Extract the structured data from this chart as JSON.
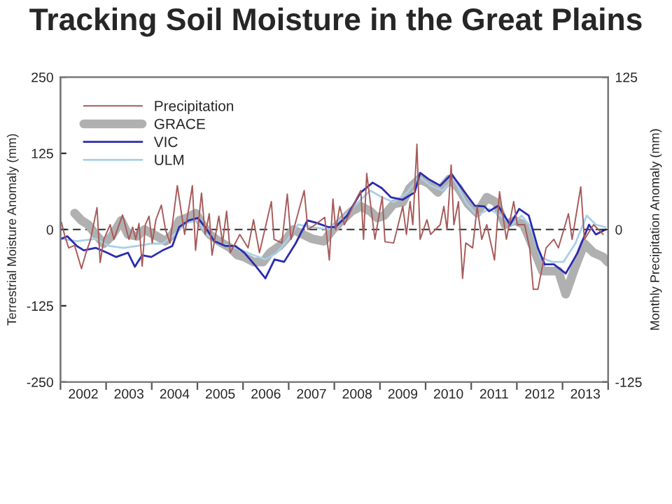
{
  "chart_data": {
    "type": "line",
    "title": "Tracking Soil Moisture in the Great Plains",
    "ylabel": "Terrestrial Moisture Anomaly (mm)",
    "y2label": "Monthly Precipitation Anomaly (mm)",
    "xlim": [
      2002,
      2014
    ],
    "xticks": [
      {
        "value": 2002,
        "label": null
      },
      {
        "value": 2002.5,
        "label": "2002"
      },
      {
        "value": 2003,
        "label": null
      },
      {
        "value": 2003.5,
        "label": "2003"
      },
      {
        "value": 2004,
        "label": null
      },
      {
        "value": 2004.5,
        "label": "2004"
      },
      {
        "value": 2005,
        "label": null
      },
      {
        "value": 2005.5,
        "label": "2005"
      },
      {
        "value": 2006,
        "label": null
      },
      {
        "value": 2006.5,
        "label": "2006"
      },
      {
        "value": 2007,
        "label": null
      },
      {
        "value": 2007.5,
        "label": "2007"
      },
      {
        "value": 2008,
        "label": null
      },
      {
        "value": 2008.5,
        "label": "2008"
      },
      {
        "value": 2009,
        "label": null
      },
      {
        "value": 2009.5,
        "label": "2009"
      },
      {
        "value": 2010,
        "label": null
      },
      {
        "value": 2010.5,
        "label": "2010"
      },
      {
        "value": 2011,
        "label": null
      },
      {
        "value": 2011.5,
        "label": "2011"
      },
      {
        "value": 2012,
        "label": null
      },
      {
        "value": 2012.5,
        "label": "2012"
      },
      {
        "value": 2013,
        "label": null
      },
      {
        "value": 2013.5,
        "label": "2013"
      },
      {
        "value": 2014,
        "label": null
      }
    ],
    "ylim": [
      -250,
      250
    ],
    "yticks": [
      -250,
      -125,
      0,
      125,
      250
    ],
    "y2lim": [
      -125,
      125
    ],
    "y2ticks": [
      -125,
      0,
      125
    ],
    "grid": false,
    "legend": "top left",
    "ref_lines": [
      {
        "axis": "y",
        "value": 0,
        "label": null,
        "color": "#444444",
        "line_style": "dashed"
      }
    ],
    "series": [
      {
        "name": "Precipitation",
        "color": "#a85a5a",
        "axis": "y2",
        "x": [
          2002.02,
          2002.1,
          2002.18,
          2002.31,
          2002.46,
          2002.56,
          2002.66,
          2002.8,
          2002.87,
          2002.95,
          2003.09,
          2003.17,
          2003.36,
          2003.5,
          2003.58,
          2003.65,
          2003.72,
          2003.79,
          2003.86,
          2003.94,
          2004.01,
          2004.09,
          2004.21,
          2004.3,
          2004.4,
          2004.56,
          2004.72,
          2004.89,
          2004.96,
          2005.09,
          2005.17,
          2005.26,
          2005.32,
          2005.47,
          2005.55,
          2005.64,
          2005.72,
          2005.93,
          2006.11,
          2006.23,
          2006.36,
          2006.62,
          2006.68,
          2006.85,
          2006.97,
          2007.05,
          2007.34,
          2007.42,
          2007.58,
          2007.79,
          2007.89,
          2007.97,
          2008.03,
          2008.12,
          2008.22,
          2008.48,
          2008.58,
          2008.64,
          2008.71,
          2008.89,
          2009.05,
          2009.11,
          2009.3,
          2009.5,
          2009.58,
          2009.66,
          2009.72,
          2009.81,
          2009.88,
          2010.03,
          2010.11,
          2010.32,
          2010.4,
          2010.47,
          2010.56,
          2010.62,
          2010.72,
          2010.81,
          2010.88,
          2011.03,
          2011.13,
          2011.23,
          2011.34,
          2011.51,
          2011.62,
          2011.77,
          2011.93,
          2012.01,
          2012.17,
          2012.28,
          2012.36,
          2012.46,
          2012.64,
          2012.81,
          2012.91,
          2013.13,
          2013.21,
          2013.4,
          2013.48,
          2013.68,
          2013.89
        ],
        "values": [
          6,
          -6,
          -15,
          -13,
          -32,
          -19,
          -8,
          18,
          -27,
          -8,
          4,
          -8,
          12,
          -8,
          2,
          -8,
          5,
          -30,
          4,
          11,
          -11,
          8,
          20,
          0,
          -11,
          36,
          -4,
          36,
          -17,
          30,
          -4,
          13,
          -21,
          11,
          -11,
          15,
          -19,
          -4,
          -15,
          8,
          -19,
          23,
          -8,
          -11,
          29,
          -8,
          32,
          0,
          4,
          10,
          -25,
          25,
          0,
          19,
          4,
          25,
          32,
          -8,
          46,
          -8,
          27,
          -10,
          -11,
          19,
          -4,
          23,
          4,
          70,
          -8,
          8,
          -4,
          4,
          19,
          0,
          53,
          4,
          23,
          -40,
          -11,
          -15,
          19,
          -8,
          4,
          -25,
          31,
          -8,
          23,
          4,
          4,
          -15,
          -49,
          -49,
          -15,
          -8,
          -15,
          13,
          -8,
          35,
          -8,
          4,
          -4
        ]
      },
      {
        "name": "GRACE",
        "color": "#b0b0b0",
        "x": [
          2002.31,
          2002.46,
          2002.61,
          2002.77,
          2002.95,
          2003.12,
          2003.33,
          2003.48,
          2003.68,
          2003.84,
          2004.04,
          2004.3,
          2004.45,
          2004.6,
          2004.76,
          2004.96,
          2005.11,
          2005.27,
          2005.47,
          2005.72,
          2005.88,
          2006.03,
          2006.23,
          2006.44,
          2006.59,
          2006.8,
          2006.95,
          2007.1,
          2007.31,
          2007.51,
          2007.77,
          2007.97,
          2008.17,
          2008.38,
          2008.58,
          2008.79,
          2008.94,
          2009.09,
          2009.3,
          2009.5,
          2009.65,
          2009.86,
          2010.06,
          2010.27,
          2010.52,
          2010.72,
          2010.93,
          2011.13,
          2011.34,
          2011.54,
          2011.74,
          2011.95,
          2012.15,
          2012.36,
          2012.56,
          2012.77,
          2012.91,
          2013.07,
          2013.28,
          2013.48,
          2013.68,
          2013.89,
          2013.99
        ],
        "values": [
          27,
          15,
          8,
          -8,
          -23,
          -11,
          15,
          -8,
          -11,
          0,
          -8,
          -19,
          -8,
          15,
          19,
          27,
          8,
          -8,
          -19,
          -30,
          -42,
          -45,
          -53,
          -53,
          -38,
          -27,
          -15,
          0,
          -8,
          -15,
          -19,
          0,
          15,
          30,
          38,
          30,
          19,
          23,
          42,
          45,
          68,
          83,
          76,
          61,
          83,
          68,
          42,
          27,
          53,
          45,
          8,
          15,
          8,
          -30,
          -68,
          -68,
          -68,
          -106,
          -61,
          -23,
          -38,
          -45,
          -53
        ]
      },
      {
        "name": "VIC",
        "color": "#2b2bb0",
        "x": [
          2002.02,
          2002.15,
          2002.36,
          2002.51,
          2002.77,
          2003.02,
          2003.22,
          2003.48,
          2003.63,
          2003.79,
          2003.99,
          2004.24,
          2004.45,
          2004.6,
          2004.81,
          2005.01,
          2005.21,
          2005.37,
          2005.62,
          2005.83,
          2006.03,
          2006.29,
          2006.49,
          2006.69,
          2006.9,
          2007.15,
          2007.41,
          2007.61,
          2007.87,
          2008.02,
          2008.28,
          2008.58,
          2008.84,
          2009.04,
          2009.24,
          2009.5,
          2009.76,
          2009.88,
          2010.06,
          2010.32,
          2010.57,
          2010.83,
          2011.08,
          2011.29,
          2011.39,
          2011.59,
          2011.85,
          2012.05,
          2012.26,
          2012.46,
          2012.61,
          2012.81,
          2013.07,
          2013.33,
          2013.58,
          2013.73,
          2013.94
        ],
        "values": [
          -15,
          -11,
          -27,
          -34,
          -30,
          -38,
          -45,
          -38,
          -61,
          -42,
          -45,
          -34,
          -27,
          4,
          15,
          19,
          0,
          -19,
          -27,
          -27,
          -38,
          -61,
          -80,
          -49,
          -53,
          -23,
          15,
          11,
          4,
          4,
          23,
          61,
          77,
          68,
          53,
          49,
          61,
          93,
          83,
          72,
          91,
          64,
          39,
          38,
          30,
          39,
          8,
          34,
          23,
          -30,
          -57,
          -57,
          -72,
          -38,
          8,
          -8,
          0
        ]
      },
      {
        "name": "ULM",
        "color": "#a8d0e8",
        "x": [
          2002.02,
          2002.36,
          2002.77,
          2003.07,
          2003.38,
          2003.68,
          2003.99,
          2004.24,
          2004.5,
          2004.76,
          2005.01,
          2005.21,
          2005.47,
          2005.72,
          2005.98,
          2006.23,
          2006.49,
          2006.74,
          2006.95,
          2007.2,
          2007.51,
          2007.87,
          2008.17,
          2008.48,
          2008.79,
          2009.04,
          2009.3,
          2009.6,
          2009.86,
          2010.11,
          2010.37,
          2010.62,
          2010.88,
          2011.13,
          2011.39,
          2011.64,
          2011.9,
          2012.1,
          2012.31,
          2012.51,
          2012.77,
          2013.02,
          2013.28,
          2013.53,
          2013.73,
          2013.94
        ],
        "values": [
          -15,
          -19,
          -15,
          -27,
          -30,
          -27,
          -23,
          -23,
          -8,
          11,
          15,
          -8,
          -23,
          -27,
          -34,
          -42,
          -49,
          -38,
          -19,
          8,
          4,
          0,
          19,
          42,
          64,
          53,
          45,
          61,
          87,
          72,
          64,
          83,
          45,
          23,
          34,
          23,
          8,
          23,
          4,
          -45,
          -53,
          -53,
          -23,
          23,
          8,
          4
        ]
      }
    ]
  }
}
